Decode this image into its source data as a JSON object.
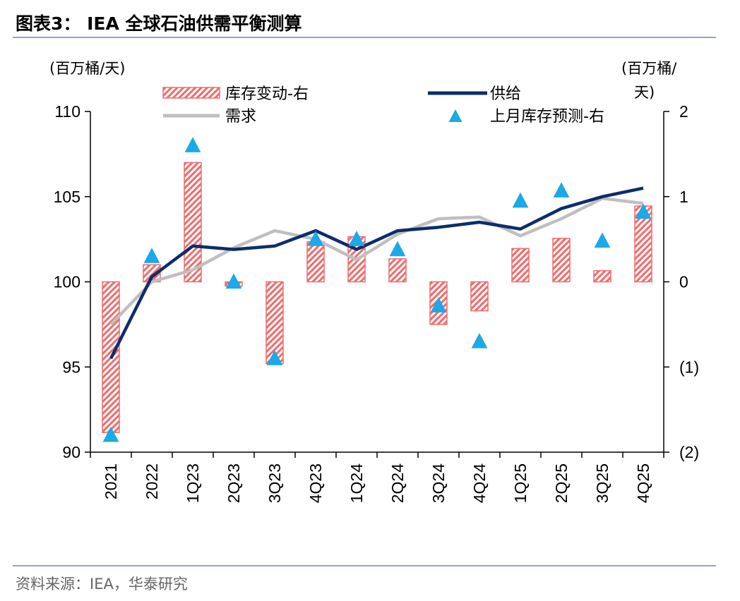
{
  "figure": {
    "title": "图表3： IEA 全球石油供需平衡测算",
    "source": "资料来源：IEA，华泰研究"
  },
  "chart_data": {
    "type": "bar+line+scatter",
    "categories": [
      "2021",
      "2022",
      "1Q23",
      "2Q23",
      "3Q23",
      "4Q23",
      "1Q24",
      "2Q24",
      "3Q24",
      "4Q24",
      "1Q25",
      "2Q25",
      "3Q25",
      "4Q25"
    ],
    "left_axis": {
      "unit": "(百万桶/天)",
      "ylim": [
        90,
        110
      ],
      "ticks": [
        90,
        95,
        100,
        105,
        110
      ],
      "tick_labels": [
        "90",
        "95",
        "100",
        "105",
        "110"
      ]
    },
    "right_axis": {
      "unit_line1": "(百万桶/",
      "unit_line2": "天)",
      "ylim": [
        -2,
        2
      ],
      "ticks": [
        -2,
        -1,
        0,
        1,
        2
      ],
      "tick_labels": [
        "(2)",
        "(1)",
        "0",
        "1",
        "2"
      ]
    },
    "series": [
      {
        "name": "库存变动-右",
        "kind": "bar",
        "axis": "right",
        "color": "#f26b6b",
        "values": [
          -1.77,
          0.2,
          1.4,
          -0.05,
          -0.96,
          0.47,
          0.53,
          0.27,
          -0.5,
          -0.34,
          0.39,
          0.51,
          0.13,
          0.89
        ]
      },
      {
        "name": "供给",
        "kind": "line",
        "axis": "left",
        "color": "#0b2d6b",
        "values": [
          95.5,
          100.3,
          102.1,
          101.9,
          102.1,
          103.0,
          101.9,
          103.0,
          103.2,
          103.5,
          103.1,
          104.3,
          105.0,
          105.5
        ]
      },
      {
        "name": "需求",
        "kind": "line",
        "axis": "left",
        "color": "#bfbfbf",
        "values": [
          97.5,
          100.0,
          100.7,
          102.0,
          103.0,
          102.5,
          101.3,
          102.8,
          103.7,
          103.8,
          102.7,
          103.7,
          104.9,
          104.6
        ]
      },
      {
        "name": "上月库存预测-右",
        "kind": "scatter",
        "axis": "right",
        "marker": "triangle",
        "color": "#1ba9e8",
        "values": [
          -1.8,
          0.3,
          1.6,
          0.0,
          -0.9,
          0.5,
          0.5,
          0.38,
          -0.28,
          -0.7,
          0.95,
          1.07,
          0.48,
          0.82
        ]
      }
    ],
    "legend": [
      {
        "label": "库存变动-右",
        "kind": "bar"
      },
      {
        "label": "供给",
        "kind": "line"
      },
      {
        "label": "需求",
        "kind": "line"
      },
      {
        "label": "上月库存预测-右",
        "kind": "triangle"
      }
    ]
  }
}
